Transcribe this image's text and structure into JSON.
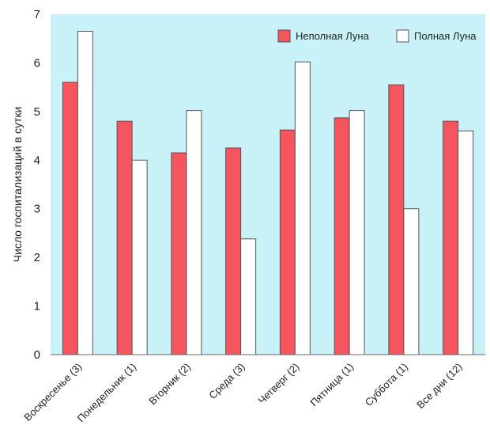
{
  "chart_data": {
    "type": "bar",
    "title": "",
    "xlabel": "",
    "ylabel": "Число госпитализаций в сутки",
    "ylim": [
      0,
      7
    ],
    "yticks": [
      0,
      1,
      2,
      3,
      4,
      5,
      6,
      7
    ],
    "grid": false,
    "legend_position": "top-right",
    "categories": [
      "Воскресенье (3)",
      "Понедельник (1)",
      "Вторник (2)",
      "Среда (3)",
      "Четверг (2)",
      "Пятница (1)",
      "Суббота (1)",
      "Все дни (12)"
    ],
    "series": [
      {
        "name": "Неполная Луна",
        "color": "#f4555e",
        "values": [
          5.6,
          4.8,
          4.15,
          4.25,
          4.62,
          4.87,
          5.55,
          4.8
        ]
      },
      {
        "name": "Полная Луна",
        "color": "#ffffff",
        "values": [
          6.65,
          4.0,
          5.02,
          2.38,
          6.02,
          5.02,
          3.0,
          4.6
        ]
      }
    ],
    "plot_background": "#c8f2f7",
    "bar_outline": "#555555"
  }
}
